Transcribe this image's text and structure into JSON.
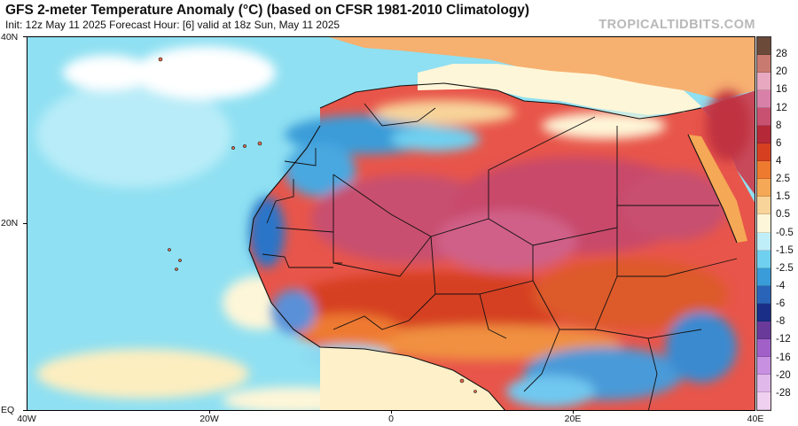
{
  "header": {
    "title": "GFS 2-meter Temperature Anomaly (°C) (based on CFSR 1981-2010 Climatology)",
    "subtitle": "Init: 12z May 11 2025   Forecast Hour: [6]   valid at 18z Sun, May 11 2025",
    "watermark": "TROPICALTIDBITS.COM"
  },
  "axes": {
    "lat_labels": [
      "40N",
      "20N",
      "EQ"
    ],
    "lon_labels": [
      "40W",
      "20W",
      "0",
      "20E",
      "40E"
    ]
  },
  "colorbar": {
    "labels": [
      "28",
      "20",
      "16",
      "12",
      "8",
      "6",
      "4",
      "2.5",
      "1.5",
      "0.5",
      "-0.5",
      "-1.5",
      "-2.5",
      "-4",
      "-6",
      "-8",
      "-12",
      "-16",
      "-20",
      "-28"
    ],
    "colors": [
      "#6b4a3a",
      "#c87a70",
      "#e8a8c0",
      "#d880a8",
      "#c85070",
      "#b42838",
      "#d64020",
      "#ee7a30",
      "#f5a855",
      "#f8d49a",
      "#fef6d8",
      "#c0eef8",
      "#70d0f0",
      "#3a9cd8",
      "#2a64b8",
      "#1a2e88",
      "#6a3a9a",
      "#a060c8",
      "#c890e0",
      "#e0b8ea",
      "#f0d0f0"
    ]
  },
  "map": {
    "ocean_color": "#8fe0f2",
    "land_base_color": "#e8554a"
  }
}
